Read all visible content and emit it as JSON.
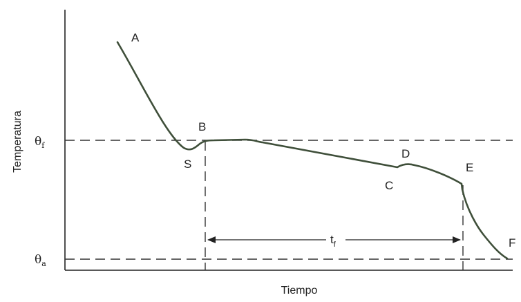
{
  "diagram": {
    "x_axis_label": "Tiempo",
    "y_axis_label": "Temperatura",
    "levels": {
      "freezing": {
        "symbol": "θ",
        "subscript": "f"
      },
      "ambient": {
        "symbol": "θ",
        "subscript": "a"
      }
    },
    "interval": {
      "symbol": "t",
      "subscript": "f"
    },
    "points": {
      "A": "A",
      "B": "B",
      "S": "S",
      "C": "C",
      "D": "D",
      "E": "E",
      "F": "F"
    },
    "colors": {
      "curve": "#3f4f3a",
      "axes": "#222222",
      "dashed": "#333333"
    }
  }
}
